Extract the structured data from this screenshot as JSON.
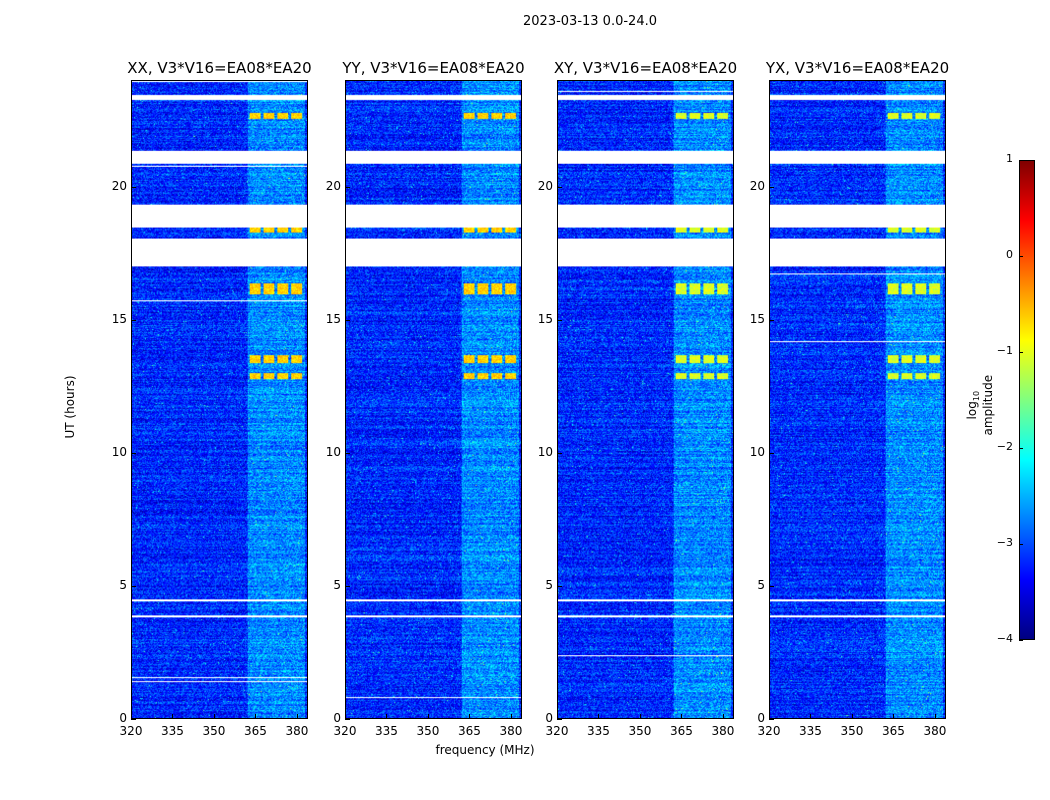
{
  "chart_data": {
    "type": "heatmap",
    "title": "2023-03-13 0.0-24.0",
    "xlabel": "frequency (MHz)",
    "ylabel": "UT (hours)",
    "xlim": [
      320,
      384
    ],
    "ylim": [
      0,
      24
    ],
    "xticks": [
      "320",
      "335",
      "350",
      "365",
      "380"
    ],
    "xtick_values": [
      320,
      335,
      350,
      365,
      380
    ],
    "yticks": [
      "0",
      "5",
      "10",
      "15",
      "20"
    ],
    "ytick_values": [
      0,
      5,
      10,
      15,
      20
    ],
    "panels": [
      {
        "title": "XX, V3*V16=EA08*EA20"
      },
      {
        "title": "YY, V3*V16=EA08*EA20"
      },
      {
        "title": "XY, V3*V16=EA08*EA20"
      },
      {
        "title": "YX, V3*V16=EA08*EA20"
      }
    ],
    "flagged_hours": [
      [
        23.3,
        23.5
      ],
      [
        20.9,
        21.4
      ],
      [
        18.5,
        19.35
      ],
      [
        17.05,
        18.1
      ],
      [
        4.4,
        4.5
      ],
      [
        3.8,
        3.9
      ]
    ],
    "rfi_channels_mhz": [
      [
        363,
        367
      ],
      [
        368,
        372
      ],
      [
        373,
        377
      ],
      [
        378,
        382
      ]
    ],
    "rfi_bursts_hours": [
      [
        16.0,
        16.4
      ],
      [
        13.4,
        13.7
      ],
      [
        12.8,
        13.0
      ],
      [
        18.3,
        18.5
      ],
      [
        22.6,
        22.8
      ]
    ],
    "background_log_amplitude": -3.2,
    "colorbar": {
      "label": "log10 amplitude",
      "label_main": "log",
      "label_sub": "10",
      "label_rest": " amplitude",
      "range": [
        -4,
        1
      ],
      "ticks": [
        "1",
        "0",
        "−1",
        "−2",
        "−3",
        "−4"
      ],
      "tick_values": [
        1,
        0,
        -1,
        -2,
        -3,
        -4
      ],
      "colormap": "jet"
    }
  }
}
